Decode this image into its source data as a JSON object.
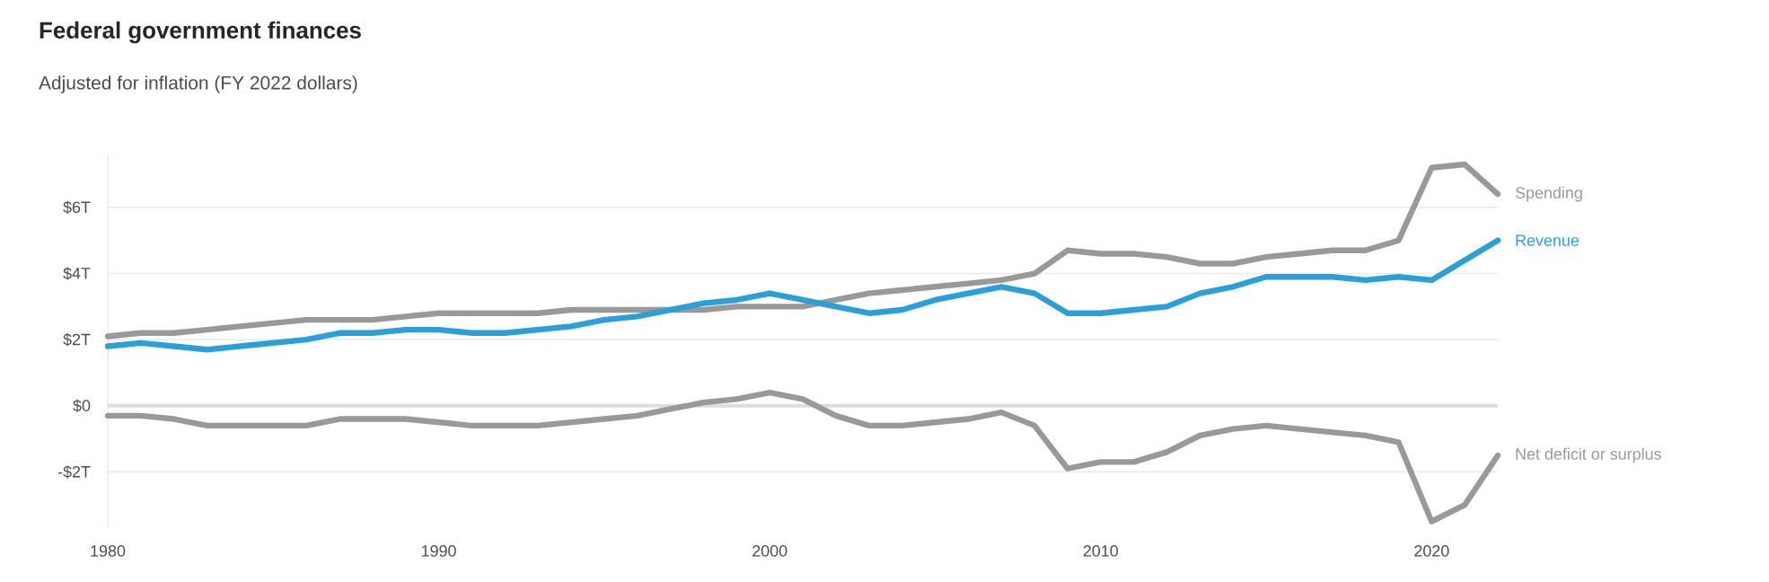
{
  "chart_data": {
    "type": "line",
    "title": "Federal government finances",
    "subtitle": "Adjusted for inflation (FY 2022 dollars)",
    "x": [
      1980,
      1981,
      1982,
      1983,
      1984,
      1985,
      1986,
      1987,
      1988,
      1989,
      1990,
      1991,
      1992,
      1993,
      1994,
      1995,
      1996,
      1997,
      1998,
      1999,
      2000,
      2001,
      2002,
      2003,
      2004,
      2005,
      2006,
      2007,
      2008,
      2009,
      2010,
      2011,
      2012,
      2013,
      2014,
      2015,
      2016,
      2017,
      2018,
      2019,
      2020,
      2021,
      2022
    ],
    "series": [
      {
        "name": "Spending",
        "color": "#999999",
        "values": [
          2.1,
          2.2,
          2.2,
          2.3,
          2.4,
          2.5,
          2.6,
          2.6,
          2.6,
          2.7,
          2.8,
          2.8,
          2.8,
          2.8,
          2.9,
          2.9,
          2.9,
          2.9,
          2.9,
          3.0,
          3.0,
          3.0,
          3.2,
          3.4,
          3.5,
          3.6,
          3.7,
          3.8,
          4.0,
          4.7,
          4.6,
          4.6,
          4.5,
          4.3,
          4.3,
          4.5,
          4.6,
          4.7,
          4.7,
          5.0,
          7.2,
          7.3,
          6.4
        ]
      },
      {
        "name": "Revenue",
        "color": "#2a9fd8",
        "values": [
          1.8,
          1.9,
          1.8,
          1.7,
          1.8,
          1.9,
          2.0,
          2.2,
          2.2,
          2.3,
          2.3,
          2.2,
          2.2,
          2.3,
          2.4,
          2.6,
          2.7,
          2.9,
          3.1,
          3.2,
          3.4,
          3.2,
          3.0,
          2.8,
          2.9,
          3.2,
          3.4,
          3.6,
          3.4,
          2.8,
          2.8,
          2.9,
          3.0,
          3.4,
          3.6,
          3.9,
          3.9,
          3.9,
          3.8,
          3.9,
          3.8,
          4.4,
          5.0
        ]
      },
      {
        "name": "Net deficit or surplus",
        "color": "#999999",
        "values": [
          -0.3,
          -0.3,
          -0.4,
          -0.6,
          -0.6,
          -0.6,
          -0.6,
          -0.4,
          -0.4,
          -0.4,
          -0.5,
          -0.6,
          -0.6,
          -0.6,
          -0.5,
          -0.4,
          -0.3,
          -0.1,
          0.1,
          0.2,
          0.4,
          0.2,
          -0.3,
          -0.6,
          -0.6,
          -0.5,
          -0.4,
          -0.2,
          -0.6,
          -1.9,
          -1.7,
          -1.7,
          -1.4,
          -0.9,
          -0.7,
          -0.6,
          -0.7,
          -0.8,
          -0.9,
          -1.1,
          -3.5,
          -3.0,
          -1.5
        ]
      }
    ],
    "xlim": [
      1980,
      2022
    ],
    "xticks": [
      1980,
      1990,
      2000,
      2010,
      2020
    ],
    "ylim": [
      -3.7,
      7.6
    ],
    "yticks": [
      {
        "value": -2,
        "label": "-$2T"
      },
      {
        "value": 0,
        "label": "$0"
      },
      {
        "value": 2,
        "label": "$2T"
      },
      {
        "value": 4,
        "label": "$4T"
      },
      {
        "value": 6,
        "label": "$6T"
      }
    ],
    "grid": "y",
    "legend": false,
    "ref_lines": [
      {
        "axis": "y",
        "value": 0,
        "color": "#dddddd"
      }
    ]
  }
}
